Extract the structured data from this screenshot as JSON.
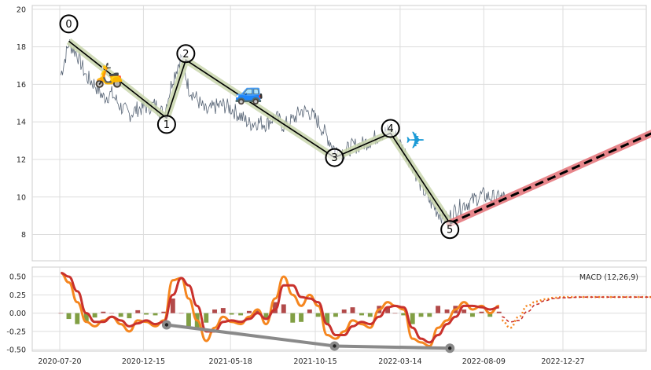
{
  "chart_data": [
    {
      "type": "line",
      "panel": "price",
      "title": "",
      "xlabel": "",
      "ylabel": "",
      "grid": true,
      "ylim": [
        6.6,
        20.2
      ],
      "yticks": [
        "8",
        "10",
        "12",
        "14",
        "16",
        "18",
        "20"
      ],
      "xlim": [
        "2020-07-20",
        "2023-07-05"
      ],
      "x_ticks": [
        "2020-07-20",
        "2020-12-15",
        "2021-05-18",
        "2021-10-15",
        "2022-03-14",
        "2022-08-09",
        "2022-12-27"
      ],
      "series": [
        {
          "role": "price",
          "color": "#3b4a5e",
          "x": [
            "2020-07-22",
            "2020-08-05",
            "2020-08-20",
            "2020-09-05",
            "2020-09-20",
            "2020-10-05",
            "2020-10-20",
            "2020-11-05",
            "2020-11-20",
            "2020-12-05",
            "2020-12-20",
            "2021-01-05",
            "2021-01-20",
            "2021-02-05",
            "2021-02-20",
            "2021-03-05",
            "2021-03-20",
            "2021-04-05",
            "2021-04-20",
            "2021-05-05",
            "2021-05-20",
            "2021-06-05",
            "2021-06-20",
            "2021-07-05",
            "2021-07-20",
            "2021-08-05",
            "2021-08-20",
            "2021-09-05",
            "2021-09-20",
            "2021-10-05",
            "2021-10-20",
            "2021-11-05",
            "2021-11-20",
            "2021-12-05",
            "2021-12-20",
            "2022-01-05",
            "2022-01-20",
            "2022-02-05",
            "2022-02-20",
            "2022-03-05",
            "2022-03-20",
            "2022-04-05",
            "2022-04-20",
            "2022-05-05",
            "2022-05-20",
            "2022-06-05",
            "2022-06-20",
            "2022-07-05",
            "2022-07-20",
            "2022-08-05",
            "2022-08-20",
            "2022-09-05",
            "2022-09-15"
          ],
          "y": [
            16.5,
            18.2,
            17.6,
            16.4,
            16.0,
            15.3,
            15.5,
            14.8,
            14.4,
            14.7,
            14.8,
            14.9,
            14.4,
            16.3,
            17.5,
            15.8,
            15.2,
            14.5,
            14.8,
            14.9,
            14.7,
            14.3,
            13.9,
            14.0,
            13.9,
            14.3,
            13.8,
            14.1,
            14.6,
            14.5,
            14.0,
            13.2,
            12.5,
            12.4,
            12.7,
            12.8,
            13.0,
            13.3,
            13.5,
            13.3,
            12.5,
            11.7,
            10.6,
            9.8,
            9.2,
            8.8,
            9.3,
            9.6,
            9.8,
            10.1,
            10.0,
            9.9,
            10.0
          ]
        }
      ],
      "pattern_points": [
        {
          "label": "0",
          "x": "2020-08-05",
          "y": 18.3
        },
        {
          "label": "1",
          "x": "2021-01-25",
          "y": 14.2
        },
        {
          "label": "2",
          "x": "2021-02-28",
          "y": 17.3
        },
        {
          "label": "3",
          "x": "2021-11-18",
          "y": 12.1
        },
        {
          "label": "4",
          "x": "2022-02-25",
          "y": 13.4
        },
        {
          "label": "5",
          "x": "2022-06-10",
          "y": 8.6
        }
      ],
      "projection": {
        "from": {
          "x": "2022-06-10",
          "y": 8.6
        },
        "to": {
          "x": "2023-06-25",
          "y": 13.7
        }
      },
      "icons": [
        {
          "name": "motor-scooter-icon",
          "glyph": "🛵",
          "x": "2020-10-15",
          "y": 16.5
        },
        {
          "name": "car-icon",
          "glyph": "🚙",
          "x": "2021-06-20",
          "y": 15.6
        },
        {
          "name": "airplane-icon",
          "glyph": "✈",
          "x": "2022-04-10",
          "y": 13.0
        }
      ],
      "colors": {
        "pattern_band": "#c9d6ad",
        "pattern_line": "#000000",
        "projection_band": "#e6797f",
        "projection_line": "#000000"
      }
    },
    {
      "type": "line",
      "panel": "macd",
      "title": "",
      "legend_text": "MACD (12,26,9)",
      "legend_placement": "top-right",
      "grid": true,
      "ylim": [
        -0.52,
        0.63
      ],
      "yticks": [
        "0.50",
        "0.25",
        "0.00",
        "-0.25",
        "-0.50"
      ],
      "x": [
        "2020-07-22",
        "2020-08-05",
        "2020-08-20",
        "2020-09-05",
        "2020-09-20",
        "2020-10-05",
        "2020-10-20",
        "2020-11-05",
        "2020-11-20",
        "2020-12-05",
        "2020-12-20",
        "2021-01-05",
        "2021-01-20",
        "2021-02-05",
        "2021-02-20",
        "2021-03-05",
        "2021-03-20",
        "2021-04-05",
        "2021-04-20",
        "2021-05-05",
        "2021-05-20",
        "2021-06-05",
        "2021-06-20",
        "2021-07-05",
        "2021-07-20",
        "2021-08-05",
        "2021-08-20",
        "2021-09-05",
        "2021-09-20",
        "2021-10-05",
        "2021-10-20",
        "2021-11-05",
        "2021-11-20",
        "2021-12-05",
        "2021-12-20",
        "2022-01-05",
        "2022-01-20",
        "2022-02-05",
        "2022-02-20",
        "2022-03-05",
        "2022-03-20",
        "2022-04-05",
        "2022-04-20",
        "2022-05-05",
        "2022-05-20",
        "2022-06-05",
        "2022-06-20",
        "2022-07-05",
        "2022-07-20",
        "2022-08-05",
        "2022-08-20",
        "2022-09-05"
      ],
      "series": [
        {
          "role": "macd",
          "color": "#f5861f",
          "values": [
            0.55,
            0.42,
            0.15,
            -0.12,
            -0.18,
            -0.1,
            -0.05,
            -0.15,
            -0.25,
            -0.1,
            -0.12,
            -0.18,
            -0.1,
            0.45,
            0.48,
            0.2,
            -0.1,
            -0.38,
            -0.2,
            -0.05,
            -0.12,
            -0.15,
            -0.05,
            0.05,
            -0.15,
            0.2,
            0.5,
            0.25,
            0.1,
            0.25,
            0.1,
            -0.3,
            -0.35,
            -0.25,
            -0.1,
            -0.15,
            -0.2,
            0.05,
            0.15,
            0.1,
            0.05,
            -0.35,
            -0.4,
            -0.45,
            -0.2,
            -0.1,
            0.05,
            0.15,
            0.05,
            0.1,
            0.0,
            0.1
          ]
        },
        {
          "role": "signal",
          "color": "#c9312c",
          "values": [
            0.55,
            0.5,
            0.3,
            0.0,
            -0.12,
            -0.12,
            -0.05,
            -0.1,
            -0.18,
            -0.14,
            -0.1,
            -0.15,
            -0.12,
            0.25,
            0.48,
            0.38,
            0.1,
            -0.25,
            -0.25,
            -0.12,
            -0.1,
            -0.12,
            -0.08,
            0.0,
            -0.08,
            0.05,
            0.38,
            0.38,
            0.22,
            0.2,
            0.15,
            -0.15,
            -0.3,
            -0.3,
            -0.18,
            -0.12,
            -0.15,
            -0.05,
            0.08,
            0.1,
            0.08,
            -0.2,
            -0.35,
            -0.4,
            -0.3,
            -0.15,
            -0.05,
            0.1,
            0.1,
            0.08,
            0.05,
            0.08
          ]
        }
      ],
      "histogram": {
        "positive_color": "#a52a2a",
        "negative_color": "#6b8e23",
        "values": [
          0.0,
          -0.08,
          -0.15,
          -0.12,
          -0.06,
          0.02,
          0.0,
          -0.05,
          -0.07,
          0.04,
          -0.02,
          -0.03,
          0.02,
          0.2,
          0.0,
          -0.18,
          -0.2,
          -0.13,
          0.05,
          0.07,
          -0.02,
          -0.03,
          0.03,
          0.05,
          -0.07,
          0.15,
          0.12,
          -0.13,
          -0.12,
          0.05,
          -0.05,
          -0.15,
          -0.05,
          0.05,
          0.08,
          -0.03,
          -0.05,
          0.1,
          0.07,
          0.0,
          -0.03,
          -0.15,
          -0.05,
          -0.05,
          0.1,
          0.05,
          0.1,
          0.05,
          -0.05,
          0.02,
          -0.05,
          0.02
        ]
      },
      "forecast": {
        "x": [
          "2022-09-10",
          "2022-09-25",
          "2022-10-10",
          "2022-10-25",
          "2022-11-10",
          "2022-11-25",
          "2022-12-10",
          "2022-12-27",
          "2023-02-01",
          "2023-03-01",
          "2023-04-01",
          "2023-05-01",
          "2023-06-01",
          "2023-06-25"
        ],
        "macd_color": "#f5861f",
        "signal_color": "#c9312c",
        "macd": [
          -0.1,
          -0.2,
          -0.05,
          0.1,
          0.16,
          0.19,
          0.21,
          0.22,
          0.22,
          0.22,
          0.22,
          0.22,
          0.22,
          0.22
        ],
        "signal": [
          -0.05,
          -0.12,
          -0.1,
          0.02,
          0.12,
          0.17,
          0.2,
          0.21,
          0.22,
          0.22,
          0.22,
          0.22,
          0.22,
          0.22
        ]
      },
      "divergence_points": [
        {
          "x": "2021-01-25",
          "y": -0.16
        },
        {
          "x": "2021-11-18",
          "y": -0.45
        },
        {
          "x": "2022-06-10",
          "y": -0.48
        }
      ],
      "divergence_color": "#8a8a8a"
    }
  ]
}
